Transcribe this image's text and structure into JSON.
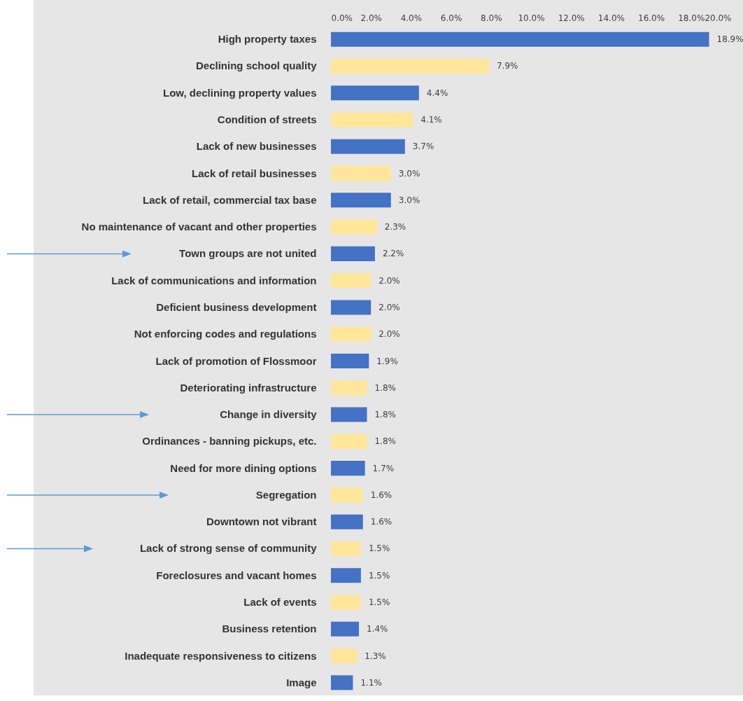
{
  "chart_data": {
    "type": "bar",
    "orientation": "horizontal",
    "categories": [
      "High property taxes",
      "Declining school quality",
      "Low, declining property values",
      "Condition of streets",
      "Lack of new businesses",
      "Lack of retail businesses",
      "Lack of retail, commercial tax base",
      "No maintenance of vacant and other properties",
      "Town groups are not united",
      "Lack of communications and information",
      "Deficient business development",
      "Not enforcing codes and regulations",
      "Lack of promotion of Flossmoor",
      "Deteriorating infrastructure",
      "Change in diversity",
      "Ordinances - banning pickups, etc.",
      "Need for more dining options",
      "Segregation",
      "Downtown not vibrant",
      "Lack of strong sense of community",
      "Foreclosures and vacant homes",
      "Lack of events",
      "Business retention",
      "Inadequate responsiveness to citizens",
      "Image"
    ],
    "values": [
      18.9,
      7.9,
      4.4,
      4.1,
      3.7,
      3.0,
      3.0,
      2.3,
      2.2,
      2.0,
      2.0,
      2.0,
      1.9,
      1.8,
      1.8,
      1.8,
      1.7,
      1.6,
      1.6,
      1.5,
      1.5,
      1.5,
      1.4,
      1.3,
      1.1
    ],
    "value_labels": [
      "18.9%",
      "7.9%",
      "4.4%",
      "4.1%",
      "3.7%",
      "3.0%",
      "3.0%",
      "2.3%",
      "2.2%",
      "2.0%",
      "2.0%",
      "2.0%",
      "1.9%",
      "1.8%",
      "1.8%",
      "1.8%",
      "1.7%",
      "1.6%",
      "1.6%",
      "1.5%",
      "1.5%",
      "1.5%",
      "1.4%",
      "1.3%",
      "1.1%"
    ],
    "colors": [
      "#4472c4",
      "#ffe699",
      "#4472c4",
      "#ffe699",
      "#4472c4",
      "#ffe699",
      "#4472c4",
      "#ffe699",
      "#4472c4",
      "#ffe699",
      "#4472c4",
      "#ffe699",
      "#4472c4",
      "#ffe699",
      "#4472c4",
      "#ffe699",
      "#4472c4",
      "#ffe699",
      "#4472c4",
      "#ffe699",
      "#4472c4",
      "#ffe699",
      "#4472c4",
      "#ffe699",
      "#4472c4"
    ],
    "xlim": [
      0,
      20
    ],
    "xticks": [
      {
        "value": 0,
        "label": "0.0%"
      },
      {
        "value": 2,
        "label": "2.0%"
      },
      {
        "value": 4,
        "label": "4.0%"
      },
      {
        "value": 6,
        "label": "6.0%"
      },
      {
        "value": 8,
        "label": "8.0%"
      },
      {
        "value": 10,
        "label": "10.0%"
      },
      {
        "value": 12,
        "label": "12.0%"
      },
      {
        "value": 14,
        "label": "14.0%"
      },
      {
        "value": 16,
        "label": "16.0%"
      },
      {
        "value": 18,
        "label": "18.0%"
      },
      {
        "value": 20,
        "label": "20.0%"
      }
    ]
  }
}
